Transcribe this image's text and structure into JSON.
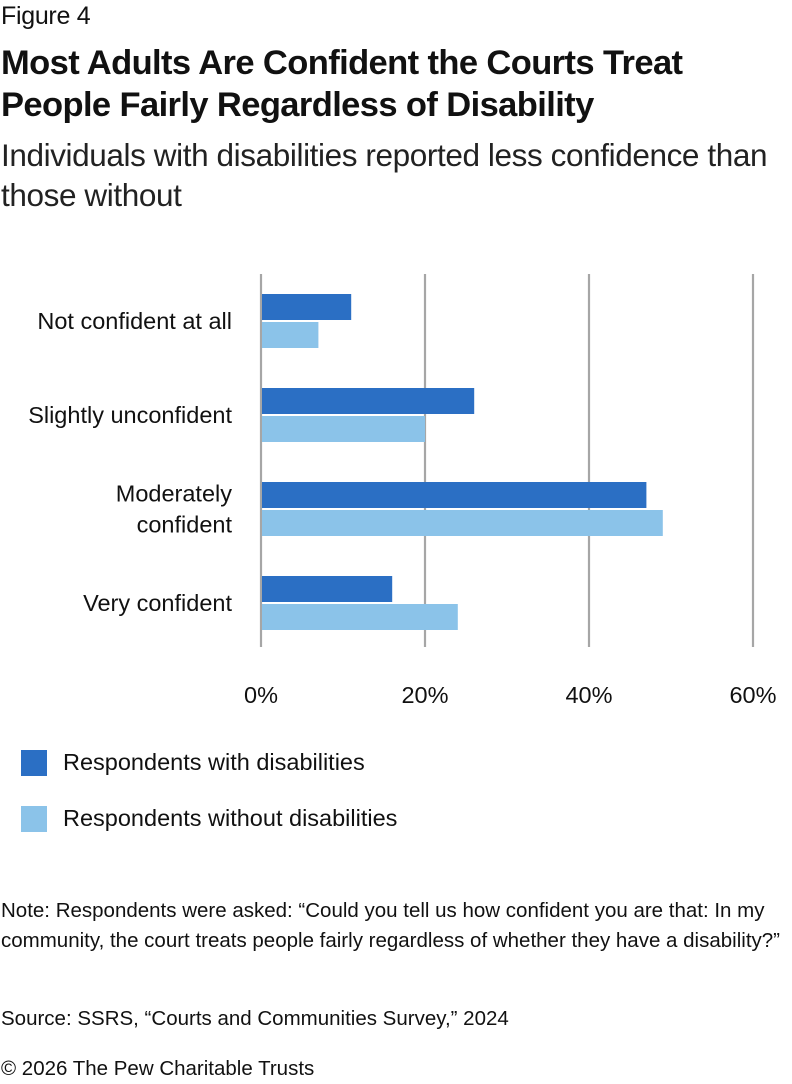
{
  "figure_label": "Figure 4",
  "title": "Most Adults Are Confident the Courts Treat People Fairly Regardless of Disability",
  "subtitle": "Individuals with disabilities reported less confidence than those without",
  "colors": {
    "with_disabilities": "#2B6FC4",
    "without_disabilities": "#8BC3E9",
    "gridline": "#A6A6A6"
  },
  "chart_data": {
    "type": "bar",
    "orientation": "horizontal",
    "title": "Most Adults Are Confident the Courts Treat People Fairly Regardless of Disability",
    "subtitle": "Individuals with disabilities reported less confidence than those without",
    "categories": [
      "Not confident at all",
      "Slightly unconfident",
      "Moderately confident",
      "Very confident"
    ],
    "category_lines": [
      [
        "Not confident at all"
      ],
      [
        "Slightly unconfident"
      ],
      [
        "Moderately",
        "confident"
      ],
      [
        "Very confident"
      ]
    ],
    "series": [
      {
        "name": "Respondents with disabilities",
        "color": "#2B6FC4",
        "values": [
          11,
          26,
          47,
          16
        ]
      },
      {
        "name": "Respondents without disabilities",
        "color": "#8BC3E9",
        "values": [
          7,
          20,
          49,
          24
        ]
      }
    ],
    "xlabel": "",
    "ylabel": "",
    "xlim": [
      0,
      60
    ],
    "xticks": [
      0,
      20,
      40,
      60
    ],
    "xtick_labels": [
      "0%",
      "20%",
      "40%",
      "60%"
    ],
    "grid": "vertical",
    "legend_position": "bottom-left"
  },
  "legend": [
    {
      "label": "Respondents with disabilities",
      "color": "#2B6FC4"
    },
    {
      "label": "Respondents without disabilities",
      "color": "#8BC3E9"
    }
  ],
  "note": "Note: Respondents were asked: “Could you tell us how confident you are that: In my community, the court treats people fairly regardless of whether they have a disability?”",
  "source": "Source: SSRS, “Courts and Communities Survey,” 2024",
  "copyright": "© 2026 The Pew Charitable Trusts"
}
